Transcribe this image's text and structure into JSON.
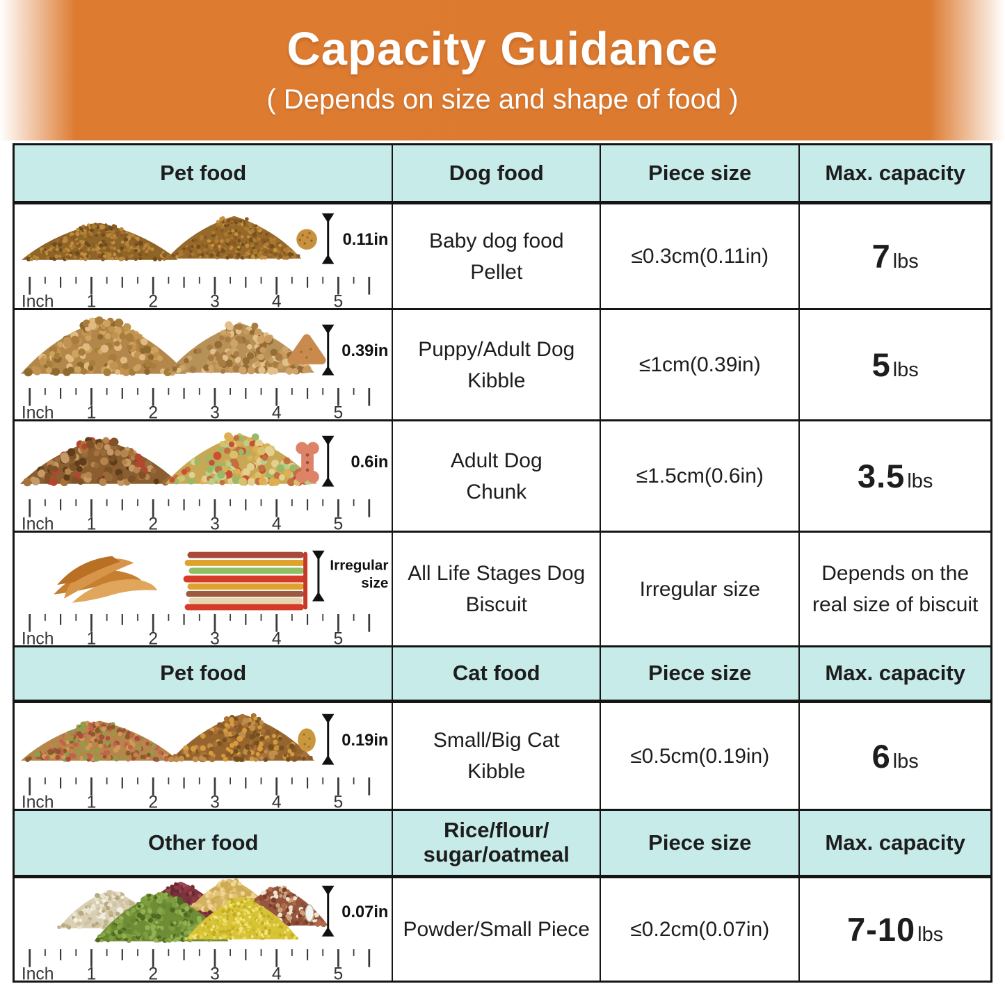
{
  "banner": {
    "title": "Capacity Guidance",
    "subtitle": "( Depends on size and shape of food )",
    "bg_color": "#dc7a30",
    "text_color": "#ffffff"
  },
  "table": {
    "header_bg": "#c7ebe9",
    "border_color": "#151515",
    "sections": [
      {
        "pet_food": "Pet food",
        "food_type": "Dog food",
        "piece_size": "Piece size",
        "max_capacity": "Max. capacity"
      },
      {
        "pet_food": "Pet food",
        "food_type": "Cat food",
        "piece_size": "Piece size",
        "max_capacity": "Max. capacity"
      },
      {
        "pet_food": "Other food",
        "food_type": "Rice/flour/\nsugar/oatmeal",
        "piece_size": "Piece size",
        "max_capacity": "Max. capacity"
      }
    ],
    "rows": [
      {
        "food": "Baby dog food\nPellet",
        "size": "≤0.3cm(0.11in)",
        "capacity_value": "7",
        "capacity_unit": "lbs",
        "size_label": "0.11in"
      },
      {
        "food": "Puppy/Adult Dog\nKibble",
        "size": "≤1cm(0.39in)",
        "capacity_value": "5",
        "capacity_unit": "lbs",
        "size_label": "0.39in"
      },
      {
        "food": "Adult Dog\nChunk",
        "size": "≤1.5cm(0.6in)",
        "capacity_value": "3.5",
        "capacity_unit": "lbs",
        "size_label": "0.6in"
      },
      {
        "food": "All Life Stages Dog\nBiscuit",
        "size": "Irregular size",
        "capacity_text": "Depends on the\nreal size of biscuit",
        "size_label": "Irregular\nsize"
      },
      {
        "food": "Small/Big Cat\nKibble",
        "size": "≤0.5cm(0.19in)",
        "capacity_value": "6",
        "capacity_unit": "lbs",
        "size_label": "0.19in"
      },
      {
        "food": "Powder/Small Piece",
        "size": "≤0.2cm(0.07in)",
        "capacity_value": "7-10",
        "capacity_unit": "lbs",
        "size_label": "0.07in"
      }
    ]
  },
  "ruler": {
    "unit_label": "Inch",
    "marks": [
      "1",
      "2",
      "3",
      "4",
      "5"
    ]
  }
}
